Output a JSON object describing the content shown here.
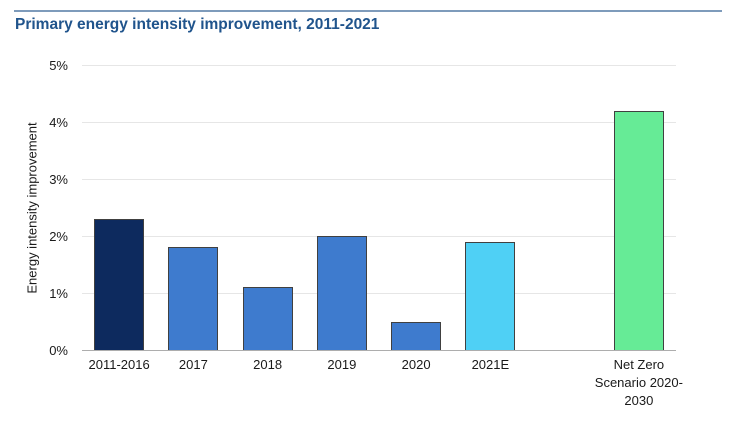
{
  "page": {
    "background": "#ffffff"
  },
  "header": {
    "title": "Primary energy intensity improvement, 2011-2021",
    "title_color": "#20548C",
    "rule_color": "#7E9BBB"
  },
  "chart_data": {
    "type": "bar",
    "title": "Primary energy intensity improvement, 2011-2021",
    "xlabel": "",
    "ylabel": "Energy intensity improvement",
    "categories": [
      "2011-2016",
      "2017",
      "2018",
      "2019",
      "2020",
      "2021E",
      "Net Zero Scenario 2020-2030"
    ],
    "values": [
      2.3,
      1.8,
      1.1,
      2.0,
      0.5,
      1.9,
      4.2
    ],
    "value_unit": "%",
    "bar_colors": [
      "#0D2A5E",
      "#3E7BCE",
      "#3E7BCE",
      "#3E7BCE",
      "#3E7BCE",
      "#4FD0F5",
      "#66EB96"
    ],
    "bar_border_color": "#404040",
    "ylim": [
      0,
      5
    ],
    "ytick_values": [
      0,
      1,
      2,
      3,
      4,
      5
    ],
    "ytick_labels": [
      "0%",
      "1%",
      "2%",
      "3%",
      "4%",
      "5%"
    ],
    "grid": true,
    "gridline_color": "#E6E6E6",
    "axis_line_color": "#ADADAD",
    "legend_position": "none",
    "slot_indices": [
      0,
      1,
      2,
      3,
      4,
      5,
      7
    ],
    "total_slots": 8
  }
}
